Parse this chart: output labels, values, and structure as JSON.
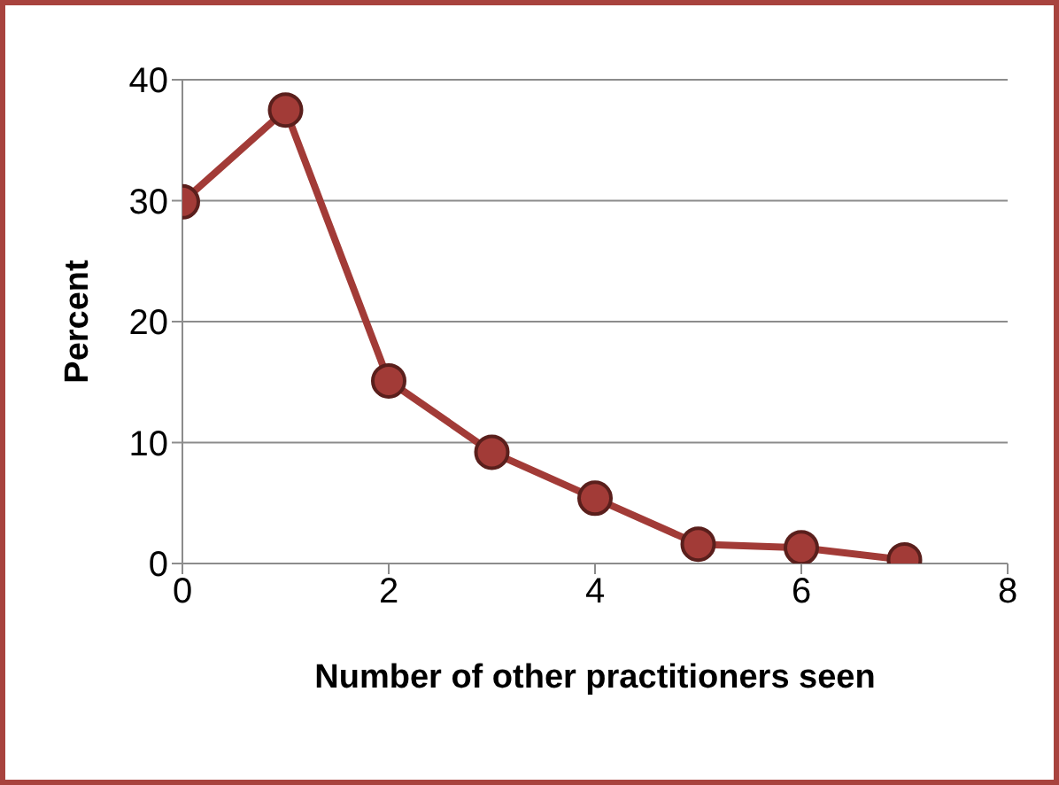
{
  "chart_data": {
    "type": "line",
    "xlabel": "Number of other practitioners seen",
    "ylabel": "Percent",
    "x": [
      0,
      1,
      2,
      3,
      4,
      5,
      6,
      7
    ],
    "series": [
      {
        "color": "#a23b37",
        "values": [
          29.9,
          37.5,
          15.1,
          9.2,
          5.4,
          1.6,
          1.3,
          0.3
        ]
      }
    ],
    "xlim": [
      0,
      8
    ],
    "xticks": [
      0,
      2,
      4,
      6,
      8
    ],
    "ylim": [
      0,
      40
    ],
    "yticks": [
      0,
      10,
      20,
      30,
      40
    ],
    "grid": "y",
    "legend": false,
    "marker": "circle",
    "line_style": "solid"
  }
}
